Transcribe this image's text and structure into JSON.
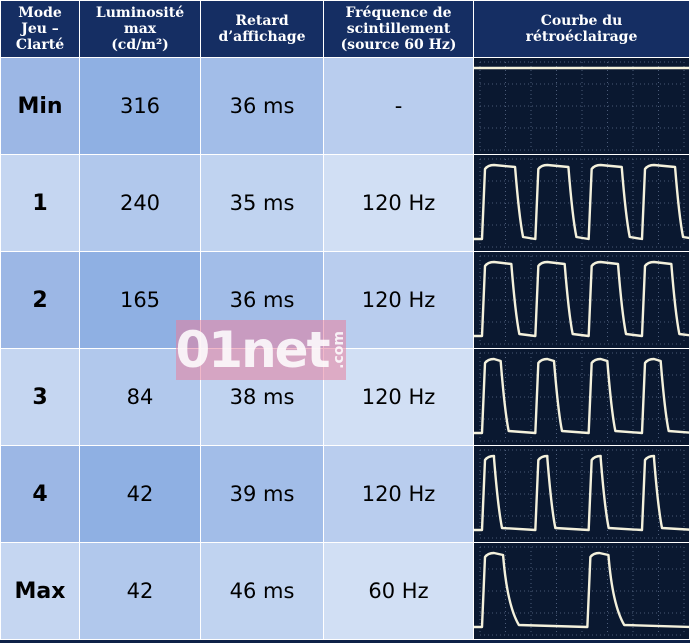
{
  "columns": [
    {
      "lines": [
        "Mode",
        "Jeu –",
        "Clarté"
      ]
    },
    {
      "lines": [
        "Luminosité",
        "max",
        "(cd/m²)"
      ]
    },
    {
      "lines": [
        "Retard",
        "d’affichage"
      ]
    },
    {
      "lines": [
        "Fréquence de",
        "scintillement",
        "(source 60 Hz)"
      ]
    },
    {
      "lines": [
        "Courbe du",
        "rétroéclairage"
      ]
    }
  ],
  "rows": [
    {
      "mode": "Min",
      "luminance": "316",
      "latency": "36 ms",
      "flicker": "-",
      "waveform": {
        "pulses": 0,
        "duty": 1.0
      }
    },
    {
      "mode": "1",
      "luminance": "240",
      "latency": "35 ms",
      "flicker": "120 Hz",
      "waveform": {
        "pulses": 4,
        "duty": 0.62
      }
    },
    {
      "mode": "2",
      "luminance": "165",
      "latency": "36 ms",
      "flicker": "120 Hz",
      "waveform": {
        "pulses": 4,
        "duty": 0.55
      }
    },
    {
      "mode": "3",
      "luminance": "84",
      "latency": "38 ms",
      "flicker": "120 Hz",
      "waveform": {
        "pulses": 4,
        "duty": 0.35
      }
    },
    {
      "mode": "4",
      "luminance": "42",
      "latency": "39 ms",
      "flicker": "120 Hz",
      "waveform": {
        "pulses": 4,
        "duty": 0.2
      }
    },
    {
      "mode": "Max",
      "luminance": "42",
      "latency": "46 ms",
      "flicker": "60 Hz",
      "waveform": {
        "pulses": 2,
        "duty": 0.2
      }
    }
  ],
  "watermark": {
    "main": "01net",
    "suffix": ".com"
  },
  "colors": {
    "header_bg": "#152e63",
    "scope_bg": "#0a1830",
    "trace": "#f4f1dc",
    "watermark": "#e8809e"
  }
}
